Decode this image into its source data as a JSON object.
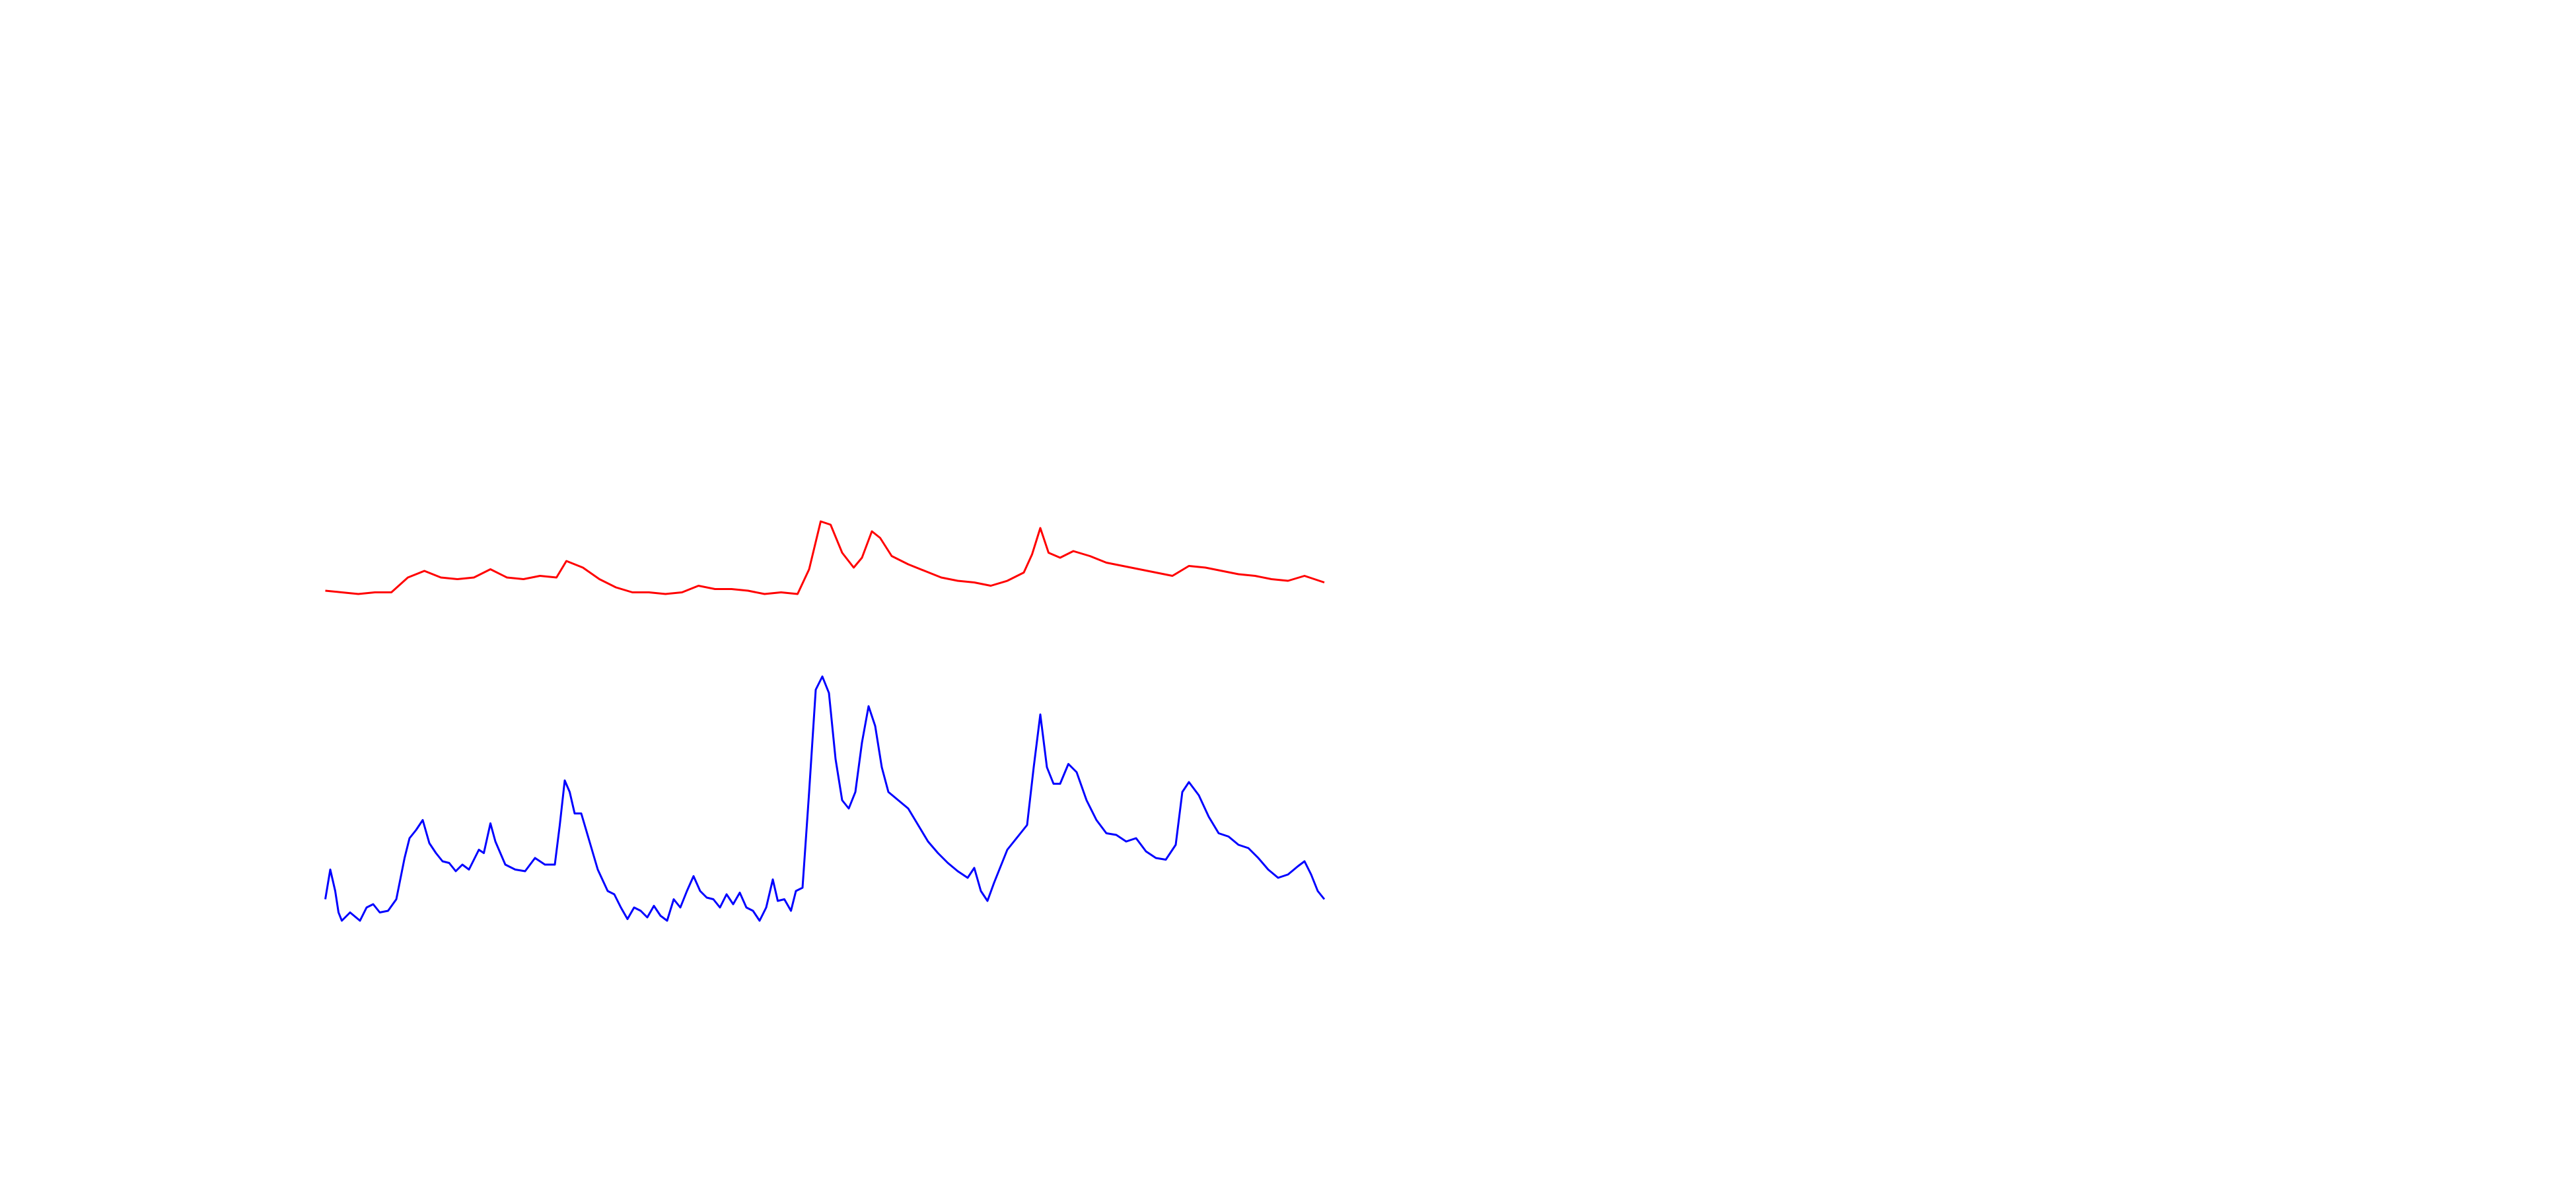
{
  "chart_data": {
    "type": "line",
    "xlim": [
      -197,
      1363
    ],
    "ylim": [
      -120,
      600
    ],
    "grid": false,
    "series": [
      {
        "color": "#ff0000",
        "x": [
          0,
          10,
          20,
          30,
          40,
          50,
          60,
          70,
          80,
          90,
          100,
          110,
          120,
          130,
          140,
          146,
          156,
          166,
          176,
          186,
          196,
          206,
          216,
          226,
          236,
          246,
          256,
          266,
          276,
          286,
          293,
          300,
          306,
          313,
          320,
          325,
          331,
          336,
          343,
          353,
          363,
          373,
          383,
          393,
          403,
          413,
          423,
          428,
          433,
          438,
          445,
          453,
          463,
          473,
          483,
          493,
          503,
          513,
          523,
          533,
          543,
          553,
          563,
          573,
          583,
          593,
          605
        ],
        "values": [
          242,
          241,
          240,
          241,
          241,
          250,
          254,
          250,
          249,
          250,
          255,
          250,
          249,
          251,
          250,
          260,
          256,
          249,
          244,
          241,
          241,
          240,
          241,
          245,
          243,
          243,
          242,
          240,
          241,
          240,
          255,
          284,
          282,
          265,
          256,
          262,
          278,
          274,
          263,
          258,
          254,
          250,
          248,
          247,
          245,
          248,
          253,
          264,
          280,
          265,
          262,
          266,
          263,
          259,
          257,
          255,
          253,
          251,
          257,
          256,
          254,
          252,
          251,
          249,
          248,
          251,
          247
        ]
      },
      {
        "color": "#0000ff",
        "x": [
          0,
          3,
          6,
          8,
          10,
          15,
          21,
          25,
          29,
          33,
          38,
          43,
          48,
          51,
          55,
          59,
          63,
          67,
          71,
          75,
          79,
          83,
          87,
          93,
          96,
          100,
          103,
          109,
          115,
          121,
          127,
          133,
          139,
          142,
          145,
          148,
          151,
          155,
          160,
          165,
          171,
          175,
          179,
          183,
          187,
          191,
          195,
          199,
          203,
          207,
          211,
          215,
          219,
          223,
          227,
          231,
          235,
          239,
          243,
          247,
          251,
          255,
          259,
          263,
          267,
          271,
          274,
          278,
          282,
          285,
          289,
          293,
          297,
          301,
          305,
          309,
          313,
          317,
          321,
          325,
          329,
          333,
          337,
          341,
          347,
          353,
          359,
          365,
          371,
          377,
          383,
          389,
          393,
          397,
          401,
          405,
          409,
          413,
          417,
          421,
          425,
          429,
          433,
          437,
          441,
          445,
          450,
          455,
          461,
          467,
          473,
          479,
          485,
          491,
          497,
          503,
          509,
          515,
          519,
          523,
          529,
          535,
          541,
          547,
          553,
          559,
          565,
          571,
          577,
          583,
          589,
          593,
          597,
          601,
          605
        ],
        "values": [
          55,
          73,
          60,
          47,
          42,
          47,
          42,
          50,
          52,
          47,
          48,
          55,
          80,
          92,
          97,
          103,
          89,
          83,
          78,
          77,
          72,
          76,
          73,
          85,
          83,
          101,
          90,
          76,
          73,
          72,
          80,
          76,
          76,
          100,
          127,
          120,
          107,
          107,
          90,
          73,
          60,
          58,
          50,
          43,
          50,
          48,
          44,
          51,
          45,
          42,
          55,
          50,
          60,
          69,
          60,
          56,
          55,
          50,
          58,
          52,
          59,
          50,
          48,
          42,
          50,
          67,
          54,
          55,
          48,
          60,
          62,
          120,
          182,
          190,
          180,
          140,
          115,
          110,
          120,
          150,
          172,
          160,
          135,
          120,
          115,
          110,
          100,
          90,
          83,
          77,
          72,
          68,
          74,
          60,
          54,
          65,
          75,
          85,
          90,
          95,
          100,
          135,
          167,
          135,
          125,
          125,
          137,
          132,
          115,
          103,
          95,
          94,
          90,
          92,
          84,
          80,
          79,
          88,
          120,
          126,
          118,
          105,
          95,
          93,
          88,
          86,
          80,
          73,
          68,
          70,
          75,
          78,
          70,
          60,
          55
        ]
      }
    ]
  }
}
